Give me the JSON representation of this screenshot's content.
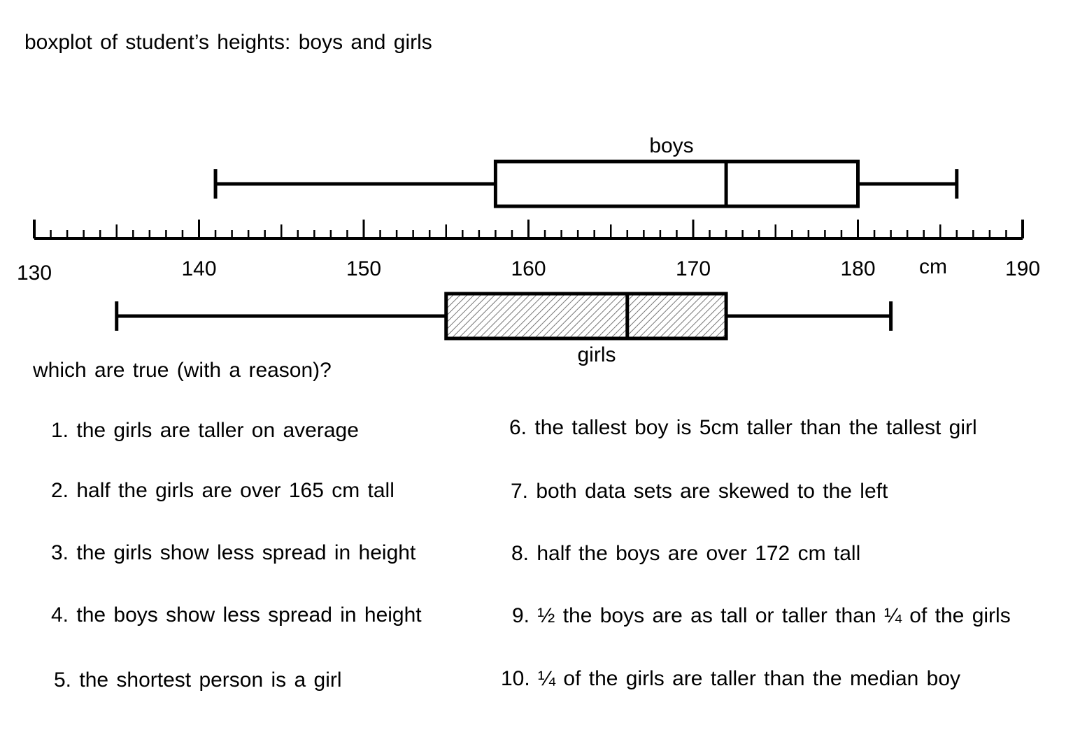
{
  "title": "boxplot of student’s heights: boys and girls",
  "question": "which are true (with a reason)?",
  "statements": [
    "1. the girls are taller on average",
    "2. half the girls are over 165 cm tall",
    "3. the girls show less spread in height",
    "4. the boys show less spread in height",
    "5. the shortest person is a girl",
    "6. the tallest boy is 5cm taller than the tallest girl",
    "7. both data sets are skewed to the left",
    "8. half the boys are over 172 cm tall",
    "9.  ½ the boys are as tall or taller than ¼ of the girls",
    "10.  ¼ of the girls are taller than the median boy"
  ],
  "chart_data": {
    "type": "boxplot",
    "title": "boxplot of student’s heights: boys and girls",
    "xlabel": "",
    "xunit": "cm",
    "xlim": [
      130,
      190
    ],
    "xticks_major": [
      130,
      140,
      150,
      160,
      170,
      180,
      190
    ],
    "minor_tick_step": 1,
    "grid": false,
    "series": [
      {
        "name": "boys",
        "min": 141,
        "q1": 158,
        "median": 172,
        "q3": 180,
        "max": 186,
        "fill": "none"
      },
      {
        "name": "girls",
        "min": 135,
        "q1": 155,
        "median": 166,
        "q3": 172,
        "max": 182,
        "fill": "hatched"
      }
    ]
  }
}
